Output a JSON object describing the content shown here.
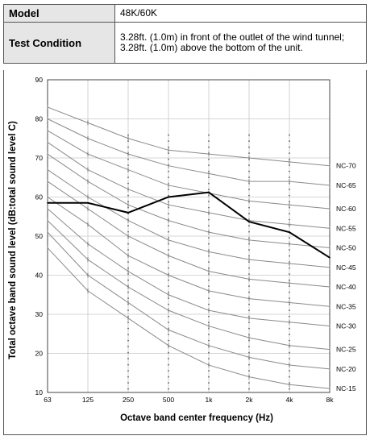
{
  "table": {
    "model_label": "Model",
    "model_value": "48K/60K",
    "condition_label": "Test Condition",
    "condition_value": "3.28ft. (1.0m) in front of the outlet of the wind tunnel; 3.28ft. (1.0m) above the bottom of the unit."
  },
  "chart_data": {
    "type": "line",
    "xlabel": "Octave band center frequency (Hz)",
    "ylabel": "Total octave band sound level (dB:total sound level C)",
    "categories": [
      "63",
      "125",
      "250",
      "500",
      "1k",
      "2k",
      "4k",
      "8k"
    ],
    "ylim": [
      10,
      90
    ],
    "yticks": [
      10,
      20,
      30,
      40,
      50,
      60,
      70,
      80,
      90
    ],
    "grid": true,
    "nc_curves": [
      {
        "label": "NC-70",
        "values": [
          83,
          79,
          75,
          72,
          71,
          70,
          69,
          68
        ]
      },
      {
        "label": "NC-65",
        "values": [
          80,
          75,
          71,
          68,
          66,
          64,
          64,
          63
        ]
      },
      {
        "label": "NC-60",
        "values": [
          77,
          71,
          67,
          63,
          61,
          59,
          58,
          57
        ]
      },
      {
        "label": "NC-55",
        "values": [
          74,
          67,
          62,
          58,
          56,
          54,
          53,
          52
        ]
      },
      {
        "label": "NC-50",
        "values": [
          71,
          64,
          58,
          54,
          51,
          49,
          48,
          47
        ]
      },
      {
        "label": "NC-45",
        "values": [
          67,
          60,
          54,
          49,
          46,
          44,
          43,
          42
        ]
      },
      {
        "label": "NC-40",
        "values": [
          64,
          57,
          50,
          45,
          41,
          39,
          38,
          37
        ]
      },
      {
        "label": "NC-35",
        "values": [
          60,
          53,
          45,
          40,
          36,
          34,
          33,
          32
        ]
      },
      {
        "label": "NC-30",
        "values": [
          57,
          48,
          41,
          35,
          31,
          29,
          28,
          27
        ]
      },
      {
        "label": "NC-25",
        "values": [
          54,
          44,
          37,
          31,
          27,
          24,
          22,
          21
        ]
      },
      {
        "label": "NC-20",
        "values": [
          51,
          40,
          33,
          26,
          22,
          19,
          17,
          16
        ]
      },
      {
        "label": "NC-15",
        "values": [
          47,
          36,
          29,
          22,
          17,
          14,
          12,
          11
        ]
      }
    ],
    "series": [
      {
        "values": [
          58.5,
          58.5,
          56,
          60,
          61.2,
          53.7,
          51,
          44.5
        ]
      }
    ]
  },
  "colors": {
    "nc_curve": "#8a8a8a",
    "measured": "#000000",
    "grid": "#c8c8c8",
    "label_cell": "#e6e6e6"
  }
}
